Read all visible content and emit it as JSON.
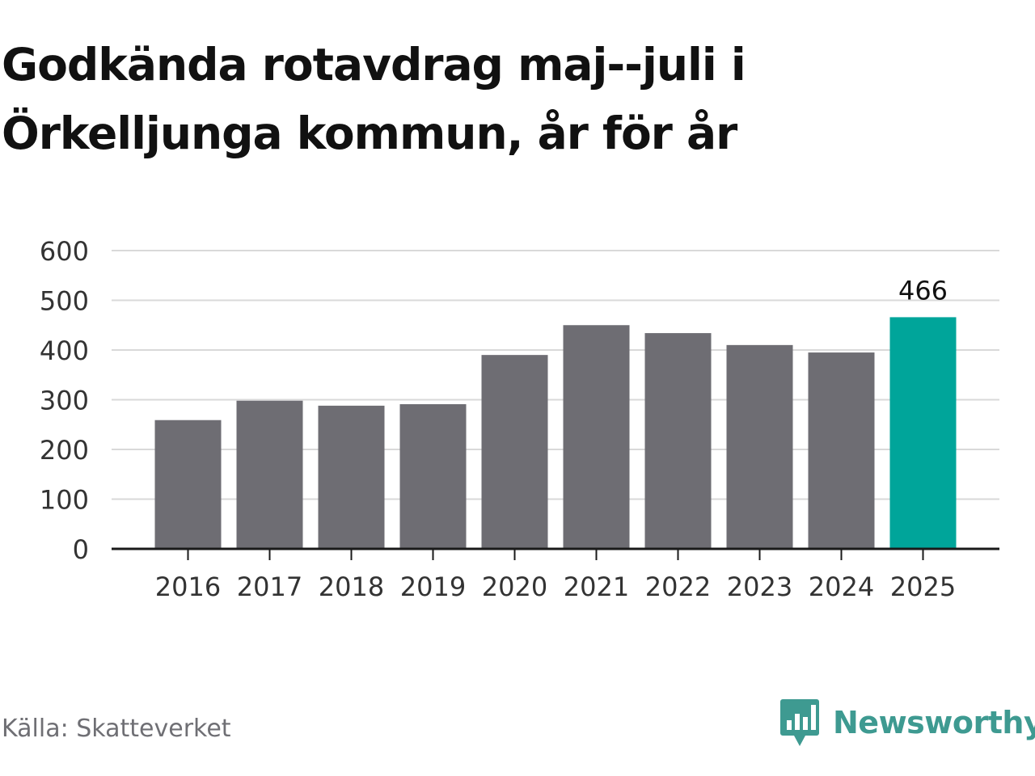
{
  "title": "Godkända rotavdrag maj--juli i Örkelljunga kommun, år för år",
  "source": "Källa: Skatteverket",
  "brand": {
    "name": "Newsworthy",
    "icon": "newsworthy-logo-icon",
    "color": "#3e9a91"
  },
  "colors": {
    "bar": "#6e6d73",
    "highlight": "#00a59a",
    "grid": "#d9d9d9",
    "axis": "#1a1a1a",
    "tick_text": "#333333"
  },
  "chart_data": {
    "type": "bar",
    "categories": [
      "2016",
      "2017",
      "2018",
      "2019",
      "2020",
      "2021",
      "2022",
      "2023",
      "2024",
      "2025"
    ],
    "values": [
      259,
      298,
      288,
      291,
      390,
      450,
      434,
      410,
      395,
      466
    ],
    "highlight_index": 9,
    "data_labels": [
      {
        "index": 9,
        "text": "466"
      }
    ],
    "ylim": [
      0,
      600
    ],
    "yticks": [
      0,
      100,
      200,
      300,
      400,
      500,
      600
    ],
    "grid": true,
    "xlabel": "",
    "ylabel": ""
  }
}
